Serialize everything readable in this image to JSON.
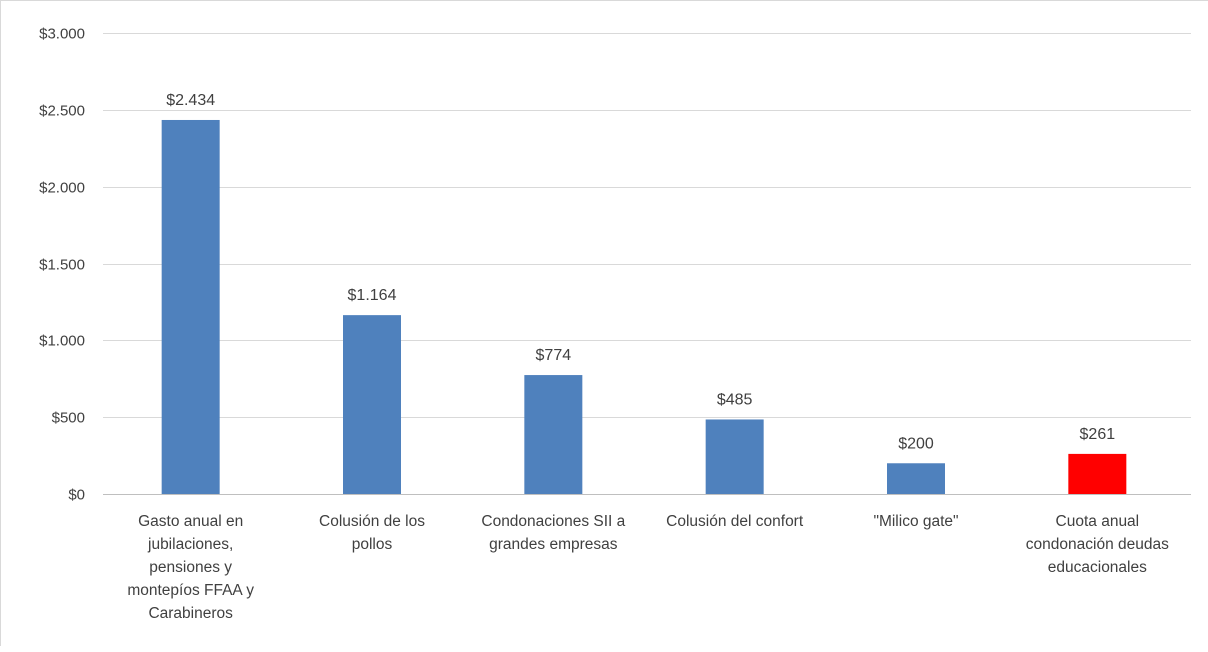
{
  "chart_data": {
    "type": "bar",
    "title": "",
    "xlabel": "",
    "ylabel": "",
    "ylim": [
      0,
      3000
    ],
    "yticks": [
      0,
      500,
      1000,
      1500,
      2000,
      2500,
      3000
    ],
    "ytick_labels": [
      "$0",
      "$500",
      "$1.000",
      "$1.500",
      "$2.000",
      "$2.500",
      "$3.000"
    ],
    "grid": true,
    "legend": "none",
    "categories": [
      [
        "Gasto anual en",
        "jubilaciones,",
        "pensiones y",
        "montepíos FFAA y",
        "Carabineros"
      ],
      [
        "Colusión de los",
        "pollos"
      ],
      [
        "Condonaciones SII a",
        "grandes empresas"
      ],
      [
        "Colusión del confort"
      ],
      [
        "\"Milico gate\""
      ],
      [
        "Cuota anual",
        "condonación deudas",
        "educacionales"
      ]
    ],
    "values": [
      2434,
      1164,
      774,
      485,
      200,
      261
    ],
    "value_labels": [
      "$2.434",
      "$1.164",
      "$774",
      "$485",
      "$200",
      "$261"
    ],
    "bar_colors": [
      "#4f81bd",
      "#4f81bd",
      "#4f81bd",
      "#4f81bd",
      "#4f81bd",
      "#ff0000"
    ],
    "gridline_color": "#d9d9d9",
    "axis_color": "#bfbfbf"
  }
}
